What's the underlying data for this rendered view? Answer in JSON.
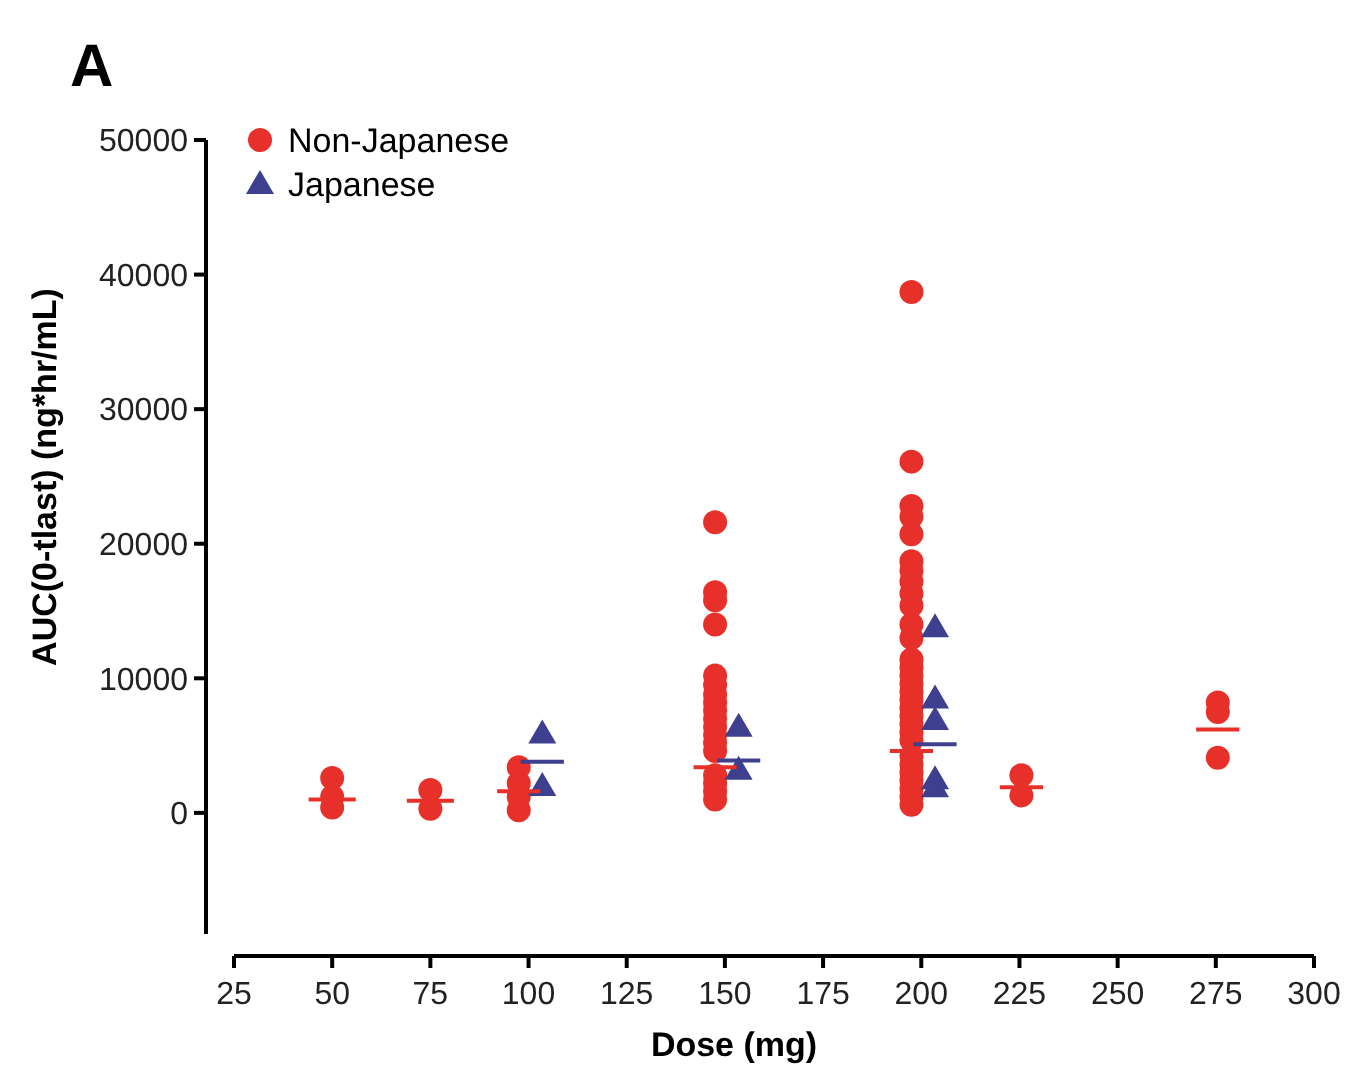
{
  "chart_data": {
    "type": "scatter",
    "title": "A",
    "xlabel": "Dose (mg)",
    "ylabel": "AUC(0-tlast) (ng*hr/mL)",
    "xlim": [
      25,
      300
    ],
    "xticks": [
      25,
      50,
      75,
      100,
      125,
      150,
      175,
      200,
      225,
      250,
      275,
      300
    ],
    "ylim": [
      -9000,
      50000
    ],
    "yticks": [
      0,
      10000,
      20000,
      30000,
      40000,
      50000
    ],
    "grid": false,
    "legend": "top left",
    "series": [
      {
        "name": "Non-Japanese",
        "color": "#e8302a",
        "marker": "circle",
        "x": [
          50,
          50,
          50,
          75,
          75,
          97.5,
          97.5,
          97.5,
          97.5,
          147.5,
          147.5,
          147.5,
          147.5,
          147.5,
          147.5,
          147.5,
          147.5,
          147.5,
          147.5,
          147.5,
          147.5,
          147.5,
          147.5,
          147.5,
          147.5,
          147.5,
          147.5,
          197.5,
          197.5,
          197.5,
          197.5,
          197.5,
          197.5,
          197.5,
          197.5,
          197.5,
          197.5,
          197.5,
          197.5,
          197.5,
          197.5,
          197.5,
          197.5,
          197.5,
          197.5,
          197.5,
          197.5,
          197.5,
          197.5,
          197.5,
          197.5,
          197.5,
          197.5,
          197.5,
          197.5,
          197.5,
          197.5,
          225.5,
          225.5,
          275.5,
          275.5,
          275.5
        ],
        "values": [
          2600,
          1200,
          400,
          1700,
          300,
          3400,
          2200,
          1200,
          200,
          21600,
          16400,
          15800,
          14000,
          10200,
          9500,
          8800,
          8200,
          7600,
          7000,
          6400,
          5800,
          5200,
          4600,
          2800,
          2200,
          1600,
          1000,
          38700,
          26100,
          22800,
          22000,
          20700,
          18700,
          18000,
          17200,
          16300,
          15400,
          14000,
          13000,
          11400,
          10800,
          10200,
          9600,
          9000,
          8400,
          7800,
          7200,
          6600,
          6000,
          5400,
          4200,
          3600,
          3000,
          2400,
          1800,
          1200,
          600,
          2800,
          1300,
          8200,
          7500,
          4100
        ]
      },
      {
        "name": "Japanese",
        "color": "#3f3f8f",
        "marker": "triangle",
        "x": [
          103.5,
          103.5,
          153.5,
          153.5,
          203.5,
          203.5,
          203.5,
          203.5,
          203.5
        ],
        "values": [
          5900,
          2000,
          6400,
          3200,
          13800,
          8500,
          6900,
          2500,
          1900
        ]
      },
      {
        "type": "line",
        "color": "#e8302a",
        "x": [
          44,
          56
        ],
        "values": [
          1000,
          1000
        ]
      },
      {
        "type": "line",
        "color": "#e8302a",
        "x": [
          69,
          81
        ],
        "values": [
          900,
          900
        ]
      },
      {
        "type": "line",
        "color": "#e8302a",
        "x": [
          92,
          103
        ],
        "values": [
          1600,
          1600
        ]
      },
      {
        "type": "line",
        "color": "#e8302a",
        "x": [
          142,
          153
        ],
        "values": [
          3400,
          3400
        ]
      },
      {
        "type": "line",
        "color": "#e8302a",
        "x": [
          192,
          203
        ],
        "values": [
          4600,
          4600
        ]
      },
      {
        "type": "line",
        "color": "#e8302a",
        "x": [
          220,
          231
        ],
        "values": [
          1900,
          1900
        ]
      },
      {
        "type": "line",
        "color": "#e8302a",
        "x": [
          270,
          281
        ],
        "values": [
          6200,
          6200
        ]
      },
      {
        "type": "line",
        "color": "#3f3f8f",
        "x": [
          98,
          109
        ],
        "values": [
          3800,
          3800
        ]
      },
      {
        "type": "line",
        "color": "#3f3f8f",
        "x": [
          148,
          159
        ],
        "values": [
          3900,
          3900
        ]
      },
      {
        "type": "line",
        "color": "#3f3f8f",
        "x": [
          198,
          209
        ],
        "values": [
          5100,
          5100
        ]
      }
    ]
  }
}
